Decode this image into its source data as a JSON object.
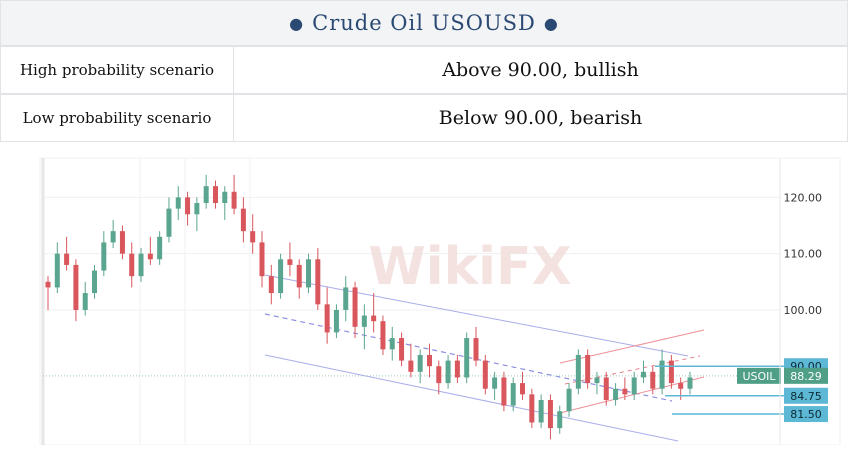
{
  "header": {
    "title": "Crude Oil USOUSD"
  },
  "scenarios": [
    {
      "label": "High probability scenario",
      "value": "Above 90.00, bullish"
    },
    {
      "label": "Low probability scenario",
      "value": "Below 90.00, bearish"
    }
  ],
  "watermark": "WikiFX",
  "chart_data": {
    "type": "candlestick",
    "symbol": "USOIL",
    "last_price": "88.29",
    "yaxis": {
      "ticks": [
        "120.00",
        "110.00",
        "100.00"
      ],
      "range": [
        76,
        127
      ]
    },
    "levels": [
      {
        "label": "90.00",
        "value": 90.0,
        "color": "#5cb8d4"
      },
      {
        "label": "84.75",
        "value": 84.75,
        "color": "#5cb8d4"
      },
      {
        "label": "81.50",
        "value": 81.5,
        "color": "#5cb8d4"
      }
    ],
    "colors": {
      "up": "#5aa58f",
      "down": "#d9565c",
      "channel": "#a9acea",
      "rising_channel": "#ef8f98"
    },
    "candles": [
      [
        105,
        106,
        100,
        104
      ],
      [
        104,
        112,
        103,
        110
      ],
      [
        110,
        113,
        107,
        108
      ],
      [
        108,
        109,
        98,
        100
      ],
      [
        100,
        105,
        99,
        103
      ],
      [
        103,
        108,
        102,
        107
      ],
      [
        107,
        114,
        106,
        112
      ],
      [
        112,
        116,
        111,
        114
      ],
      [
        114,
        115,
        109,
        110
      ],
      [
        110,
        112,
        104,
        106
      ],
      [
        106,
        111,
        105,
        110
      ],
      [
        110,
        113,
        108,
        109
      ],
      [
        109,
        114,
        108,
        113
      ],
      [
        113,
        120,
        112,
        118
      ],
      [
        118,
        122,
        116,
        120
      ],
      [
        120,
        121,
        115,
        117
      ],
      [
        117,
        120,
        114,
        119
      ],
      [
        119,
        124,
        118,
        122
      ],
      [
        122,
        123,
        118,
        119
      ],
      [
        119,
        122,
        116,
        121
      ],
      [
        121,
        124,
        117,
        118
      ],
      [
        118,
        120,
        112,
        114
      ],
      [
        114,
        117,
        110,
        112
      ],
      [
        112,
        114,
        104,
        106
      ],
      [
        106,
        108,
        101,
        103
      ],
      [
        103,
        110,
        102,
        109
      ],
      [
        109,
        112,
        106,
        108
      ],
      [
        108,
        109,
        102,
        104
      ],
      [
        104,
        110,
        103,
        109
      ],
      [
        109,
        111,
        100,
        101
      ],
      [
        101,
        104,
        94,
        96
      ],
      [
        96,
        101,
        95,
        100
      ],
      [
        100,
        106,
        98,
        104
      ],
      [
        104,
        105,
        95,
        97
      ],
      [
        97,
        101,
        93,
        99
      ],
      [
        99,
        103,
        96,
        98
      ],
      [
        98,
        99,
        92,
        93
      ],
      [
        93,
        97,
        91,
        95
      ],
      [
        95,
        96,
        90,
        91
      ],
      [
        91,
        94,
        88,
        89
      ],
      [
        89,
        93,
        87,
        92
      ],
      [
        92,
        94,
        88,
        90
      ],
      [
        90,
        91,
        85,
        87
      ],
      [
        87,
        92,
        86,
        91
      ],
      [
        91,
        92,
        87,
        88
      ],
      [
        88,
        96,
        87,
        95
      ],
      [
        95,
        97,
        90,
        91
      ],
      [
        91,
        92,
        85,
        86
      ],
      [
        86,
        89,
        84,
        88
      ],
      [
        88,
        89,
        82,
        83
      ],
      [
        83,
        88,
        82,
        87
      ],
      [
        87,
        89,
        84,
        85
      ],
      [
        85,
        86,
        79,
        80
      ],
      [
        80,
        85,
        79,
        84
      ],
      [
        84,
        85,
        77,
        79
      ],
      [
        79,
        83,
        78,
        82
      ],
      [
        82,
        87,
        81,
        86
      ],
      [
        86,
        93,
        85,
        92
      ],
      [
        92,
        93,
        86,
        87
      ],
      [
        87,
        89,
        85,
        88
      ],
      [
        88,
        89,
        83,
        84
      ],
      [
        84,
        87,
        83,
        86
      ],
      [
        86,
        88,
        84,
        85
      ],
      [
        85,
        89,
        84,
        88
      ],
      [
        88,
        91,
        87,
        89
      ],
      [
        89,
        90,
        85,
        86
      ],
      [
        86,
        93,
        85,
        91
      ],
      [
        91,
        92,
        86,
        87
      ],
      [
        87,
        88,
        84,
        86
      ],
      [
        86,
        89,
        85,
        88
      ]
    ]
  }
}
